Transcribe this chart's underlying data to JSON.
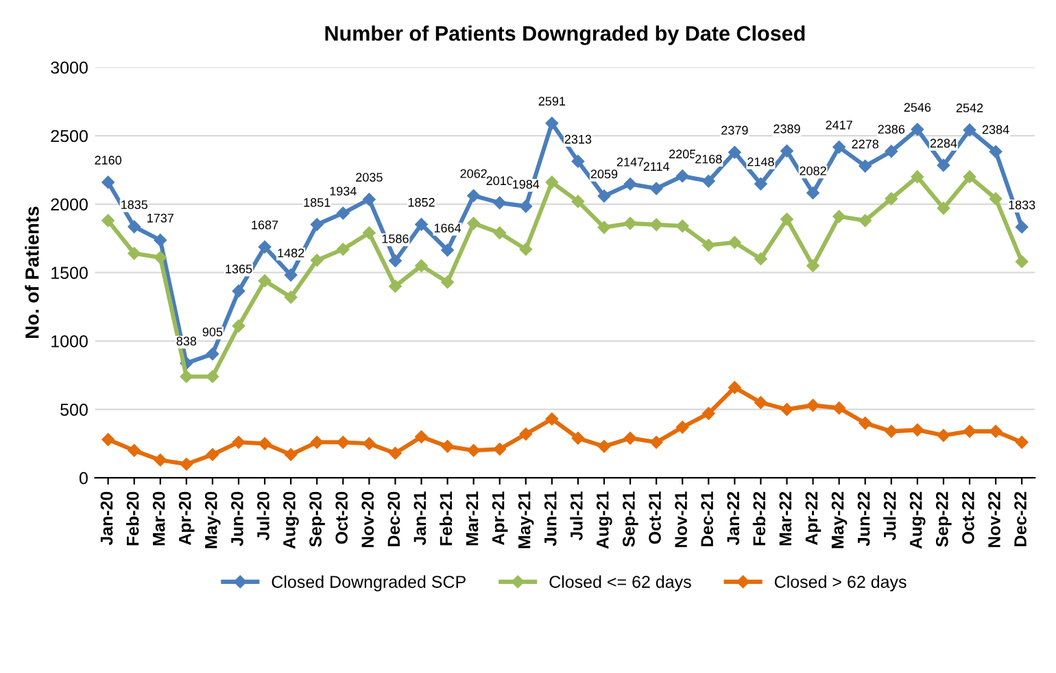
{
  "chart_data": {
    "type": "line",
    "title": "Number of Patients Downgraded by Date Closed",
    "ylabel": "No. of Patients",
    "categories": [
      "Jan-20",
      "Feb-20",
      "Mar-20",
      "Apr-20",
      "May-20",
      "Jun-20",
      "Jul-20",
      "Aug-20",
      "Sep-20",
      "Oct-20",
      "Nov-20",
      "Dec-20",
      "Jan-21",
      "Feb-21",
      "Mar-21",
      "Apr-21",
      "May-21",
      "Jun-21",
      "Jul-21",
      "Aug-21",
      "Sep-21",
      "Oct-21",
      "Nov-21",
      "Dec-21",
      "Jan-22",
      "Feb-22",
      "Mar-22",
      "Apr-22",
      "May-22",
      "Jun-22",
      "Jul-22",
      "Aug-22",
      "Sep-22",
      "Oct-22",
      "Nov-22",
      "Dec-22"
    ],
    "series": [
      {
        "name": "Closed Downgraded SCP",
        "color": "#4a7ebb",
        "values": [
          2160,
          1835,
          1737,
          838,
          905,
          1365,
          1687,
          1482,
          1851,
          1934,
          2035,
          1586,
          1852,
          1664,
          2062,
          2010,
          1984,
          2591,
          2313,
          2059,
          2147,
          2114,
          2205,
          2168,
          2379,
          2148,
          2389,
          2082,
          2417,
          2278,
          2386,
          2546,
          2284,
          2542,
          2384,
          1833
        ],
        "value_labels": [
          "2160",
          "1835",
          "1737",
          "838",
          "905",
          "1365",
          "1687",
          "1482",
          "1851",
          "1934",
          "2035",
          "1586",
          "1852",
          "1664",
          "2062",
          "2010",
          "1984",
          "2591",
          "2313",
          "2059",
          "2147",
          "2114",
          "2205",
          "2168",
          "2379",
          "2148",
          "2389",
          "2082",
          "2417",
          "2278",
          "2386",
          "2546",
          "2284",
          "2542",
          "2384",
          "1833"
        ]
      },
      {
        "name": "Closed <= 62 days",
        "color": "#9bbb59",
        "values": [
          1880,
          1640,
          1610,
          740,
          740,
          1110,
          1440,
          1320,
          1590,
          1670,
          1790,
          1400,
          1550,
          1430,
          1860,
          1790,
          1670,
          2160,
          2020,
          1830,
          1860,
          1850,
          1840,
          1700,
          1720,
          1600,
          1890,
          1550,
          1910,
          1880,
          2040,
          2200,
          1970,
          2200,
          2040,
          1580
        ]
      },
      {
        "name": "Closed > 62 days",
        "color": "#e46c0a",
        "values": [
          280,
          200,
          130,
          100,
          170,
          260,
          250,
          170,
          260,
          260,
          250,
          180,
          300,
          230,
          200,
          210,
          320,
          430,
          290,
          230,
          290,
          260,
          370,
          470,
          660,
          550,
          500,
          530,
          510,
          400,
          340,
          350,
          310,
          340,
          340,
          260
        ]
      }
    ],
    "ylim": [
      0,
      3000
    ],
    "yticks": [
      0,
      500,
      1000,
      1500,
      2000,
      2500,
      3000
    ],
    "grid": "y",
    "legend": "bottom",
    "marker": "diamond",
    "line_style": "solid"
  }
}
